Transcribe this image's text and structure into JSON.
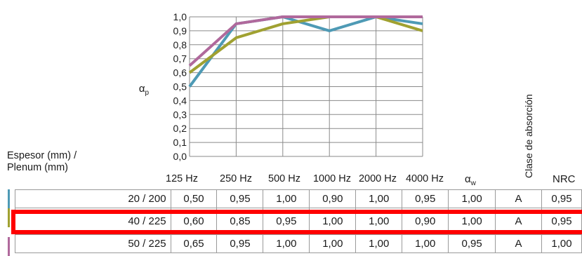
{
  "chart_data": {
    "type": "line",
    "categories": [
      "125 Hz",
      "250 Hz",
      "500 Hz",
      "1000 Hz",
      "2000 Hz",
      "4000 Hz"
    ],
    "ylabel": "αp",
    "ylim": [
      0,
      1.0
    ],
    "yticks": [
      "0,0",
      "0,1",
      "0,2",
      "0,3",
      "0,4",
      "0,5",
      "0,6",
      "0,7",
      "0,8",
      "0,9",
      "1,0"
    ],
    "grid": true,
    "series": [
      {
        "color": "#4e9ab5",
        "values": [
          0.5,
          0.95,
          1.0,
          0.9,
          1.0,
          0.95
        ]
      },
      {
        "color": "#a0a131",
        "values": [
          0.6,
          0.85,
          0.95,
          1.0,
          1.0,
          0.9
        ]
      },
      {
        "color": "#b0699c",
        "values": [
          0.65,
          0.95,
          1.0,
          1.0,
          1.0,
          1.0
        ]
      }
    ]
  },
  "table": {
    "row_header": "Espesor (mm) /",
    "row_header_2": "Plenum (mm)",
    "freq_headers": [
      "125 Hz",
      "250 Hz",
      "500 Hz",
      "1000 Hz",
      "2000 Hz",
      "4000 Hz"
    ],
    "aw_header": "αw",
    "class_header": "Clase de absorción",
    "nrc_header": "NRC",
    "rows": [
      {
        "label": "20 / 200",
        "values": [
          "0,50",
          "0,95",
          "1,00",
          "0,90",
          "1,00",
          "0,95"
        ],
        "aw": "1,00",
        "class": "A",
        "nrc": "0,95",
        "color": "#4e9ab5"
      },
      {
        "label": "40 / 225",
        "values": [
          "0,60",
          "0,85",
          "0,95",
          "1,00",
          "1,00",
          "0,90"
        ],
        "aw": "1,00",
        "class": "A",
        "nrc": "0,95",
        "color": "#a0a131"
      },
      {
        "label": "50 / 225",
        "values": [
          "0,65",
          "0,95",
          "1,00",
          "1,00",
          "1,00",
          "1,00"
        ],
        "aw": "0,95",
        "class": "A",
        "nrc": "1,00",
        "color": "#b0699c"
      }
    ]
  },
  "highlight_color": "#ff0000"
}
